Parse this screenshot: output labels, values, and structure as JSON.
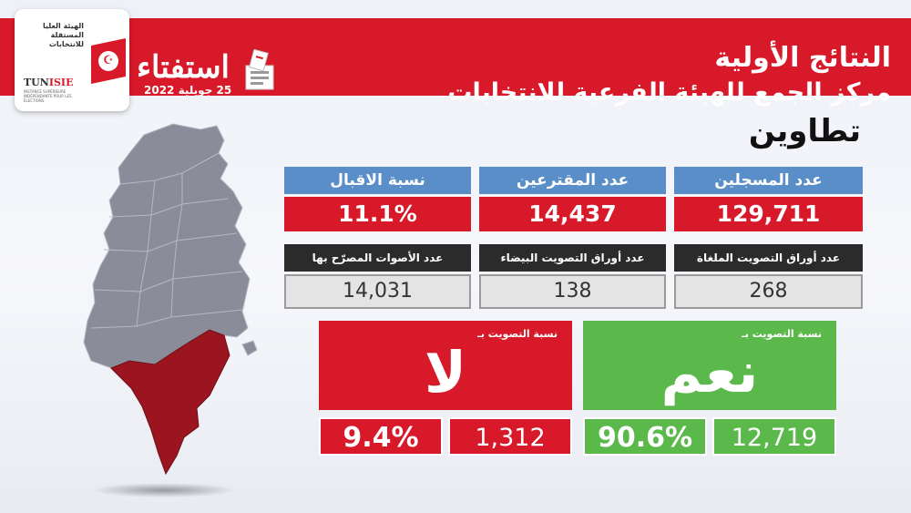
{
  "header": {
    "title_line1": "النتائج الأولية",
    "title_line2": "مركز الجمع للهيئة الفرعية للانتخابات",
    "campaign": "استفتاء",
    "campaign_date": "25 جويلية 2022"
  },
  "logo": {
    "arabic_name": "الهيئة العليا المستقلة للانتخابات",
    "acronym_part1": "TUN",
    "acronym_part2": "ISIE",
    "french_name": "INSTANCE SUPÉRIEURE INDÉPENDANTE POUR LES ÉLECTIONS"
  },
  "region": "تطاوين",
  "stats": {
    "registered_label": "عدد المسجلين",
    "registered_value": "129,711",
    "voters_label": "عدد المقترعين",
    "voters_value": "14,437",
    "turnout_label": "نسبة الاقبال",
    "turnout_value": "11.1%",
    "cancelled_label": "عدد أوراق التصويت الملغاة",
    "cancelled_value": "268",
    "blank_label": "عدد أوراق التصويت البيضاء",
    "blank_value": "138",
    "valid_label": "عدد الأصوات المصرّح بها",
    "valid_value": "14,031"
  },
  "vote_no": {
    "caption": "نسبة التصويت بـ",
    "word": "لا",
    "percent": "9.4%",
    "count": "1,312"
  },
  "vote_yes": {
    "caption": "نسبة التصويت بـ",
    "word": "نعم",
    "percent": "90.6%",
    "count": "12,719"
  },
  "colors": {
    "brand_red": "#d7192a",
    "header_blue": "#5a8ec8",
    "yes_green": "#5bb84a",
    "highlight_region": "#9b1520",
    "map_gray": "#8a8d99"
  }
}
